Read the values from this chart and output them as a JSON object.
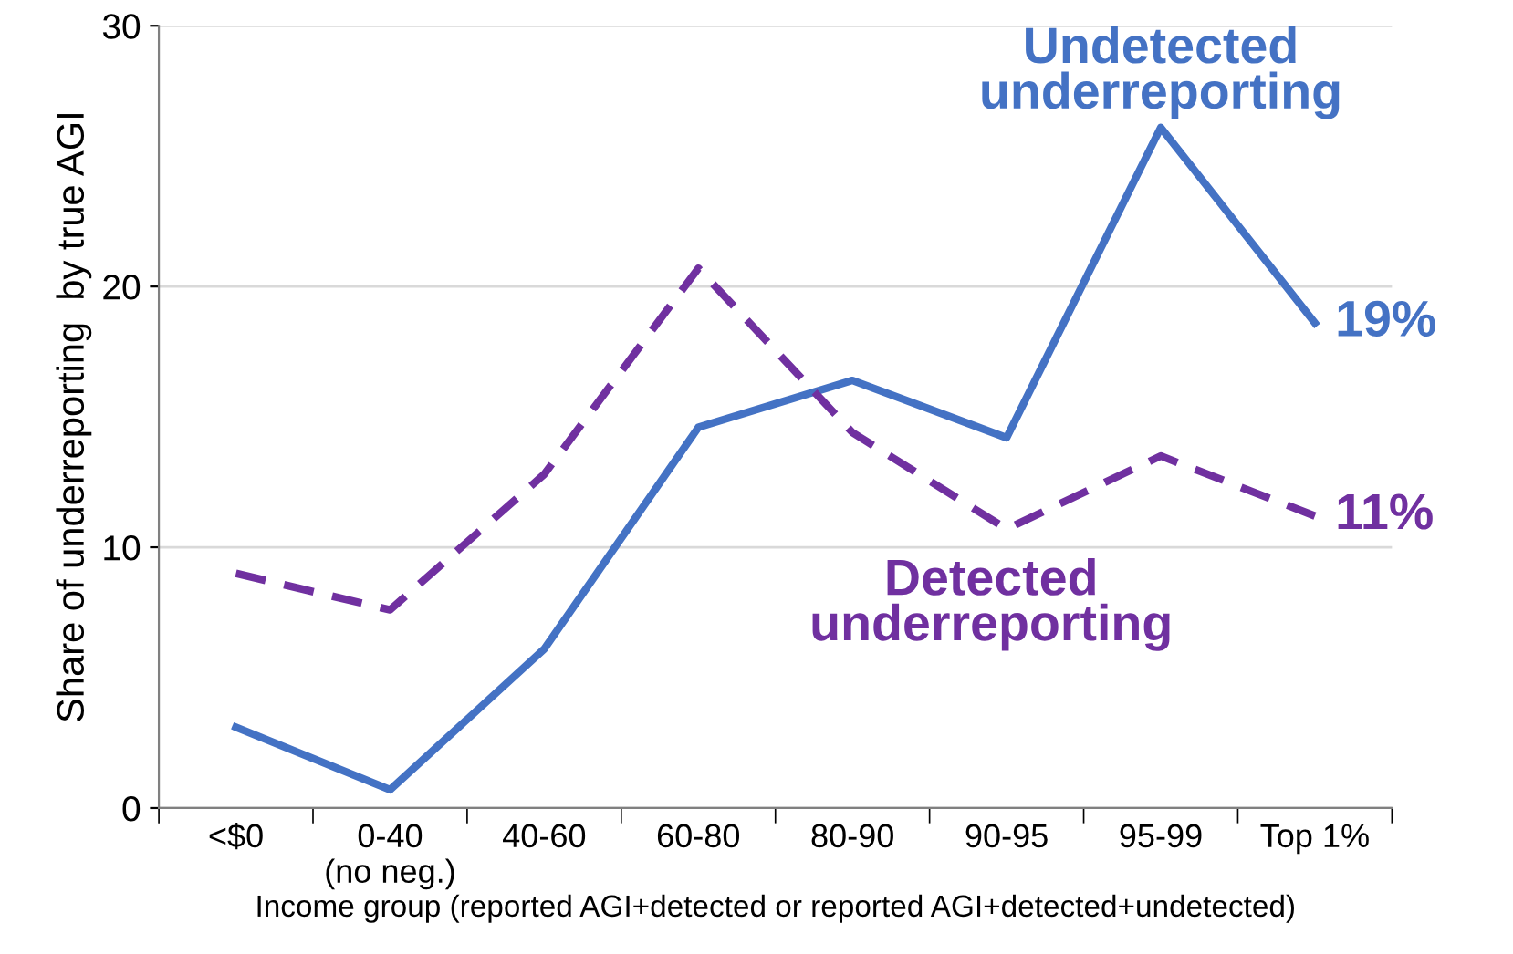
{
  "chart_data": {
    "type": "line",
    "ylabel": "Share of underreporting  by true AGI",
    "xlabel": "Income group (reported AGI+detected or reported AGI+detected+undetected)",
    "categories": [
      "<$0",
      "0-40\n(no neg.)",
      "40-60",
      "60-80",
      "80-90",
      "90-95",
      "95-99",
      "Top 1%"
    ],
    "series": [
      {
        "name": "Undetected\nunderreporting",
        "color": "#4472c4",
        "line_style": "solid",
        "values": [
          3.1,
          0.7,
          6.1,
          14.6,
          16.4,
          14.2,
          26.1,
          18.6
        ]
      },
      {
        "name": "Detected\nunderreporting",
        "color": "#7030a0",
        "line_style": "dashed",
        "values": [
          9.0,
          7.6,
          12.8,
          20.7,
          14.4,
          10.7,
          13.5,
          11.2
        ]
      }
    ],
    "annotations": [
      {
        "text": "19%",
        "x": "Top 1%",
        "y": 18.6
      },
      {
        "text": "11%",
        "x": "Top 1%",
        "y": 11.2
      }
    ],
    "ylim": [
      0,
      30
    ],
    "yticks": [
      0,
      10,
      20,
      30
    ],
    "grid": "y",
    "legend": false,
    "marker": "none"
  }
}
